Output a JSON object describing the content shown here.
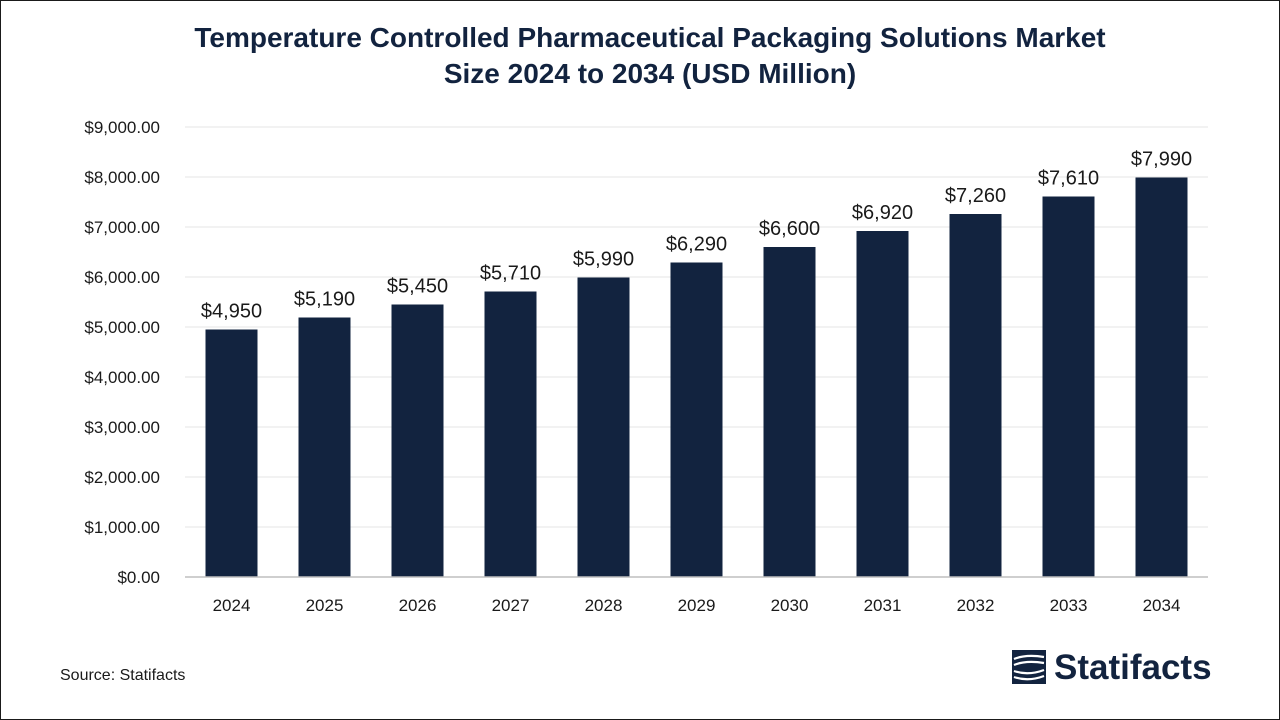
{
  "chart_data": {
    "type": "bar",
    "title_lines": [
      "Temperature Controlled Pharmaceutical Packaging Solutions Market",
      "Size 2024 to 2034 (USD Million)"
    ],
    "categories": [
      "2024",
      "2025",
      "2026",
      "2027",
      "2028",
      "2029",
      "2030",
      "2031",
      "2032",
      "2033",
      "2034"
    ],
    "values": [
      4950,
      5190,
      5450,
      5710,
      5990,
      6290,
      6600,
      6920,
      7260,
      7610,
      7990
    ],
    "data_labels": [
      "$4,950",
      "$5,190",
      "$5,450",
      "$5,710",
      "$5,990",
      "$6,290",
      "$6,600",
      "$6,920",
      "$7,260",
      "$7,610",
      "$7,990"
    ],
    "ylim": [
      0,
      9000
    ],
    "yticks": [
      0,
      1000,
      2000,
      3000,
      4000,
      5000,
      6000,
      7000,
      8000,
      9000
    ],
    "ytick_labels": [
      "$0.00",
      "$1,000.00",
      "$2,000.00",
      "$3,000.00",
      "$4,000.00",
      "$5,000.00",
      "$6,000.00",
      "$7,000.00",
      "$8,000.00",
      "$9,000.00"
    ],
    "grid": true,
    "bar_color": "#12233f"
  },
  "footer": {
    "source": "Source: Statifacts",
    "logo_text": "Statifacts",
    "logo_icon": "statifacts-logo-icon"
  }
}
